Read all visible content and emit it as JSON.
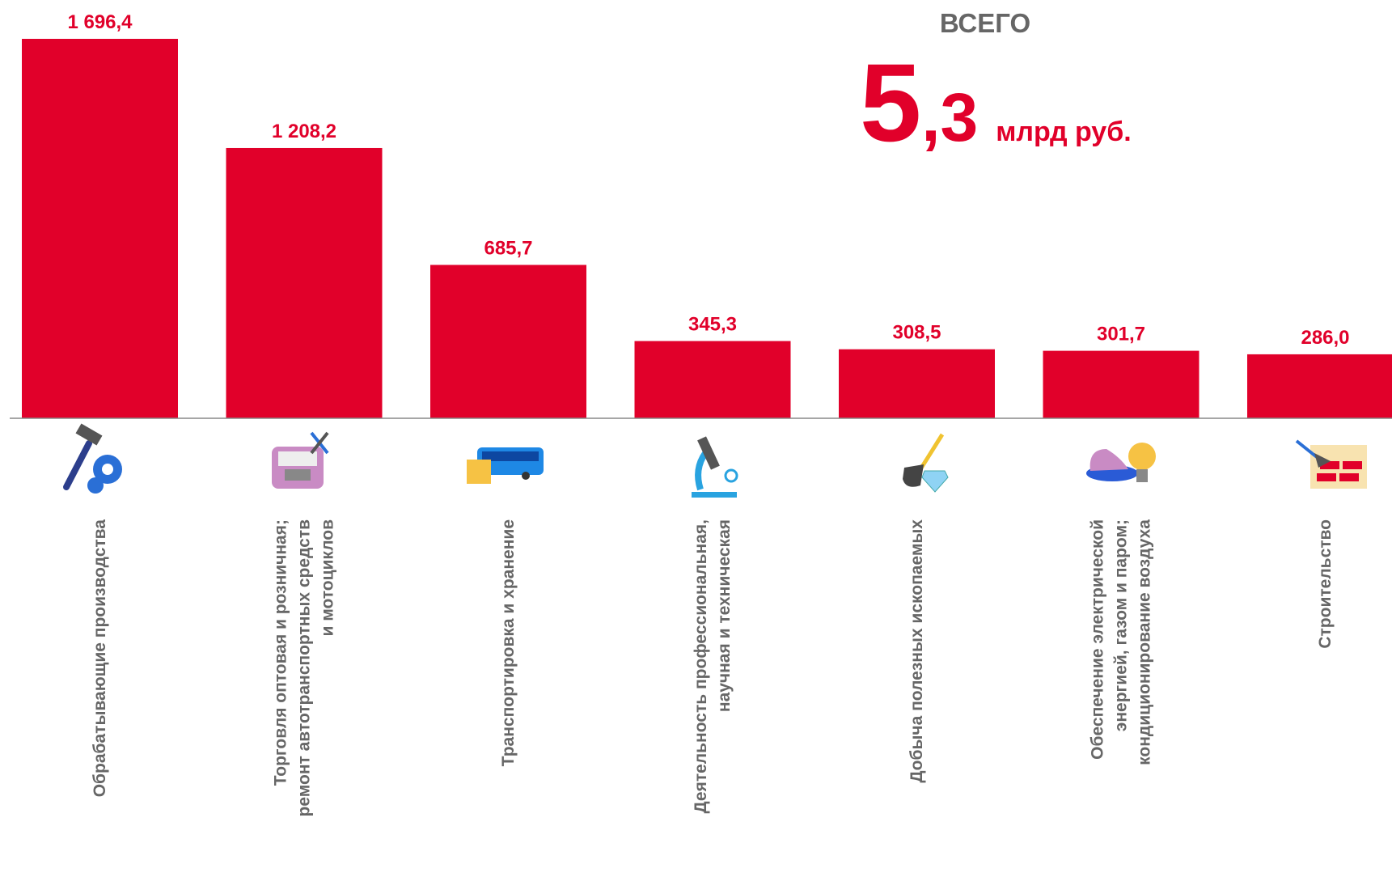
{
  "chart_data": {
    "type": "bar",
    "categories": [
      "Обрабатывающие производства",
      "Торговля оптовая и розничная;\nремонт автотранспортных средств\nи мотоциклов",
      "Транспортировка и хранение",
      "Деятельность профессиональная,\nнаучная и техническая",
      "Добыча полезных ископаемых",
      "Обеспечение электрической\nэнергией, газом и паром;\nкондиционирование воздуха",
      "Строительство"
    ],
    "values": [
      1696.4,
      1208.2,
      685.7,
      345.3,
      308.5,
      301.7,
      286.0
    ],
    "value_labels": [
      "1 696,4",
      "1 208,2",
      "685,7",
      "345,3",
      "308,5",
      "301,7",
      "286,0"
    ],
    "color": "#e1002a",
    "total": {
      "label": "ВСЕГО",
      "value_int": "5",
      "value_frac": ",3",
      "unit": "млрд руб."
    }
  }
}
